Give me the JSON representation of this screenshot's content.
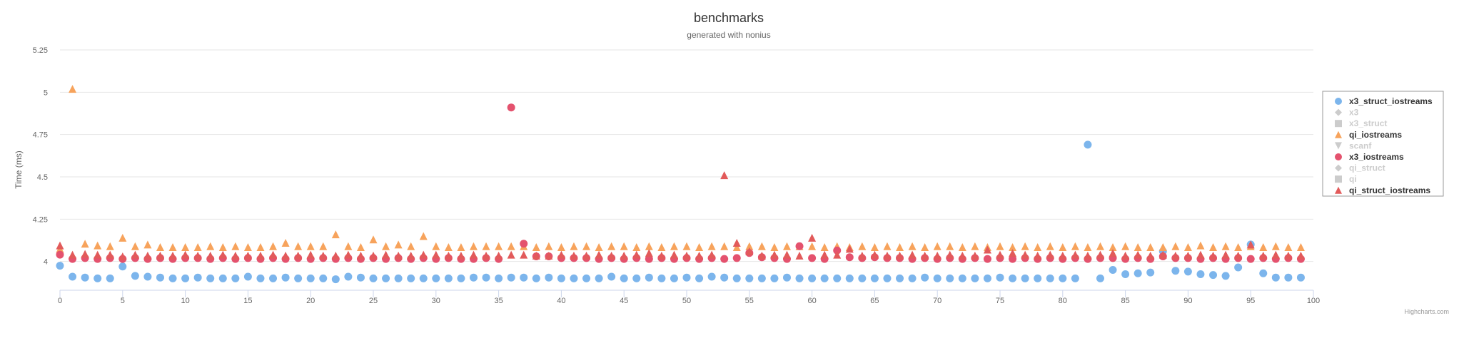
{
  "colors": {
    "blue": "#7cb5ec",
    "orange": "#f7a35c",
    "pink": "#e4526e",
    "red": "#e25a5a",
    "hidden": "#cccccc",
    "grid": "#e6e6e6",
    "axis": "#ccd6eb",
    "legend_border": "#999999"
  },
  "credits": "Highcharts.com",
  "chart_data": {
    "type": "scatter",
    "title": "benchmarks",
    "subtitle": "generated with nonius",
    "xlabel": "",
    "ylabel": "Time (ms)",
    "xlim": [
      0,
      100
    ],
    "ylim": [
      3.83,
      5.25
    ],
    "x_ticks": [
      0,
      5,
      10,
      15,
      20,
      25,
      30,
      35,
      40,
      45,
      50,
      55,
      60,
      65,
      70,
      75,
      80,
      85,
      90,
      95,
      100
    ],
    "y_ticks": [
      {
        "value": 4,
        "label": "4"
      },
      {
        "value": 4.25,
        "label": "4.25"
      },
      {
        "value": 4.5,
        "label": "4.5"
      },
      {
        "value": 4.75,
        "label": "4.75"
      },
      {
        "value": 5,
        "label": "5"
      },
      {
        "value": 5.25,
        "label": "5.25"
      }
    ],
    "grid": true,
    "legend_position": "right",
    "series": [
      {
        "name": "x3_struct_iostreams",
        "marker": "circle",
        "color": "#7cb5ec",
        "visible": true,
        "values": [
          3.975,
          3.91,
          3.905,
          3.9,
          3.9,
          3.97,
          3.915,
          3.91,
          3.905,
          3.9,
          3.9,
          3.905,
          3.9,
          3.9,
          3.9,
          3.91,
          3.9,
          3.9,
          3.905,
          3.9,
          3.9,
          3.9,
          3.895,
          3.91,
          3.905,
          3.9,
          3.9,
          3.9,
          3.9,
          3.9,
          3.9,
          3.9,
          3.9,
          3.905,
          3.905,
          3.9,
          3.905,
          3.905,
          3.9,
          3.905,
          3.9,
          3.9,
          3.9,
          3.9,
          3.91,
          3.9,
          3.9,
          3.905,
          3.9,
          3.9,
          3.905,
          3.9,
          3.91,
          3.905,
          3.9,
          3.9,
          3.9,
          3.9,
          3.905,
          3.9,
          3.9,
          3.9,
          3.9,
          3.9,
          3.9,
          3.9,
          3.9,
          3.9,
          3.9,
          3.905,
          3.9,
          3.9,
          3.9,
          3.9,
          3.9,
          3.905,
          3.9,
          3.9,
          3.9,
          3.9,
          3.9,
          3.9,
          4.69,
          3.9,
          3.95,
          3.925,
          3.93,
          3.935,
          4.06,
          3.945,
          3.94,
          3.925,
          3.92,
          3.915,
          3.965,
          4.1,
          3.93,
          3.905,
          3.905,
          3.905
        ]
      },
      {
        "name": "x3",
        "marker": "diamond",
        "color": "#cccccc",
        "visible": false,
        "values": []
      },
      {
        "name": "x3_struct",
        "marker": "square",
        "color": "#cccccc",
        "visible": false,
        "values": []
      },
      {
        "name": "qi_iostreams",
        "marker": "triangle",
        "color": "#f7a35c",
        "visible": true,
        "values": [
          4.075,
          5.02,
          4.105,
          4.095,
          4.09,
          4.14,
          4.09,
          4.1,
          4.085,
          4.085,
          4.085,
          4.085,
          4.09,
          4.085,
          4.09,
          4.085,
          4.085,
          4.09,
          4.11,
          4.09,
          4.09,
          4.09,
          4.16,
          4.09,
          4.085,
          4.13,
          4.09,
          4.1,
          4.09,
          4.15,
          4.09,
          4.085,
          4.085,
          4.09,
          4.09,
          4.09,
          4.09,
          4.09,
          4.085,
          4.09,
          4.085,
          4.09,
          4.09,
          4.085,
          4.09,
          4.09,
          4.085,
          4.09,
          4.085,
          4.09,
          4.09,
          4.085,
          4.09,
          4.09,
          4.085,
          4.09,
          4.09,
          4.085,
          4.09,
          4.09,
          4.09,
          4.085,
          4.09,
          4.085,
          4.09,
          4.085,
          4.09,
          4.085,
          4.09,
          4.085,
          4.09,
          4.09,
          4.085,
          4.09,
          4.085,
          4.09,
          4.085,
          4.09,
          4.085,
          4.09,
          4.085,
          4.09,
          4.085,
          4.09,
          4.085,
          4.09,
          4.085,
          4.085,
          4.085,
          4.09,
          4.085,
          4.095,
          4.085,
          4.09,
          4.085,
          4.09,
          4.085,
          4.09,
          4.085,
          4.085
        ]
      },
      {
        "name": "scanf",
        "marker": "triangle-down",
        "color": "#cccccc",
        "visible": false,
        "values": []
      },
      {
        "name": "x3_iostreams",
        "marker": "circle",
        "color": "#e4526e",
        "visible": true,
        "values": [
          4.04,
          4.015,
          4.02,
          4.015,
          4.02,
          4.015,
          4.02,
          4.015,
          4.02,
          4.015,
          4.02,
          4.02,
          4.015,
          4.02,
          4.015,
          4.02,
          4.015,
          4.02,
          4.015,
          4.02,
          4.015,
          4.02,
          4.015,
          4.02,
          4.015,
          4.02,
          4.015,
          4.02,
          4.015,
          4.02,
          4.015,
          4.02,
          4.015,
          4.015,
          4.02,
          4.015,
          4.91,
          4.105,
          4.03,
          4.03,
          4.02,
          4.02,
          4.02,
          4.015,
          4.02,
          4.015,
          4.02,
          4.015,
          4.02,
          4.015,
          4.02,
          4.015,
          4.02,
          4.015,
          4.02,
          4.05,
          4.025,
          4.02,
          4.015,
          4.09,
          4.02,
          4.015,
          4.065,
          4.025,
          4.02,
          4.025,
          4.02,
          4.02,
          4.015,
          4.02,
          4.015,
          4.02,
          4.015,
          4.02,
          4.015,
          4.02,
          4.015,
          4.02,
          4.015,
          4.02,
          4.015,
          4.02,
          4.015,
          4.02,
          4.02,
          4.015,
          4.02,
          4.015,
          4.03,
          4.02,
          4.02,
          4.015,
          4.02,
          4.015,
          4.02,
          4.015,
          4.02,
          4.015,
          4.02,
          4.015
        ]
      },
      {
        "name": "qi_struct",
        "marker": "diamond",
        "color": "#cccccc",
        "visible": false,
        "values": []
      },
      {
        "name": "qi",
        "marker": "square",
        "color": "#cccccc",
        "visible": false,
        "values": []
      },
      {
        "name": "qi_struct_iostreams",
        "marker": "triangle",
        "color": "#e25a5a",
        "visible": true,
        "values": [
          4.095,
          4.04,
          4.045,
          4.04,
          4.04,
          4.03,
          4.04,
          4.035,
          4.035,
          4.035,
          4.04,
          4.035,
          4.035,
          4.04,
          4.035,
          4.035,
          4.035,
          4.04,
          4.035,
          4.035,
          4.04,
          4.035,
          4.035,
          4.04,
          4.035,
          4.035,
          4.04,
          4.035,
          4.035,
          4.04,
          4.04,
          4.035,
          4.035,
          4.04,
          4.035,
          4.035,
          4.04,
          4.04,
          4.035,
          4.035,
          4.04,
          4.035,
          4.035,
          4.04,
          4.035,
          4.035,
          4.04,
          4.05,
          4.035,
          4.04,
          4.035,
          4.035,
          4.04,
          4.51,
          4.11,
          4.06,
          4.035,
          4.04,
          4.04,
          4.035,
          4.14,
          4.04,
          4.04,
          4.075,
          4.035,
          4.04,
          4.035,
          4.035,
          4.04,
          4.035,
          4.035,
          4.04,
          4.035,
          4.035,
          4.07,
          4.04,
          4.05,
          4.04,
          4.035,
          4.04,
          4.035,
          4.04,
          4.035,
          4.04,
          4.05,
          4.035,
          4.04,
          4.035,
          4.04,
          4.035,
          4.035,
          4.04,
          4.035,
          4.04,
          4.035,
          4.1,
          4.035,
          4.04,
          4.035,
          4.035
        ]
      }
    ]
  }
}
